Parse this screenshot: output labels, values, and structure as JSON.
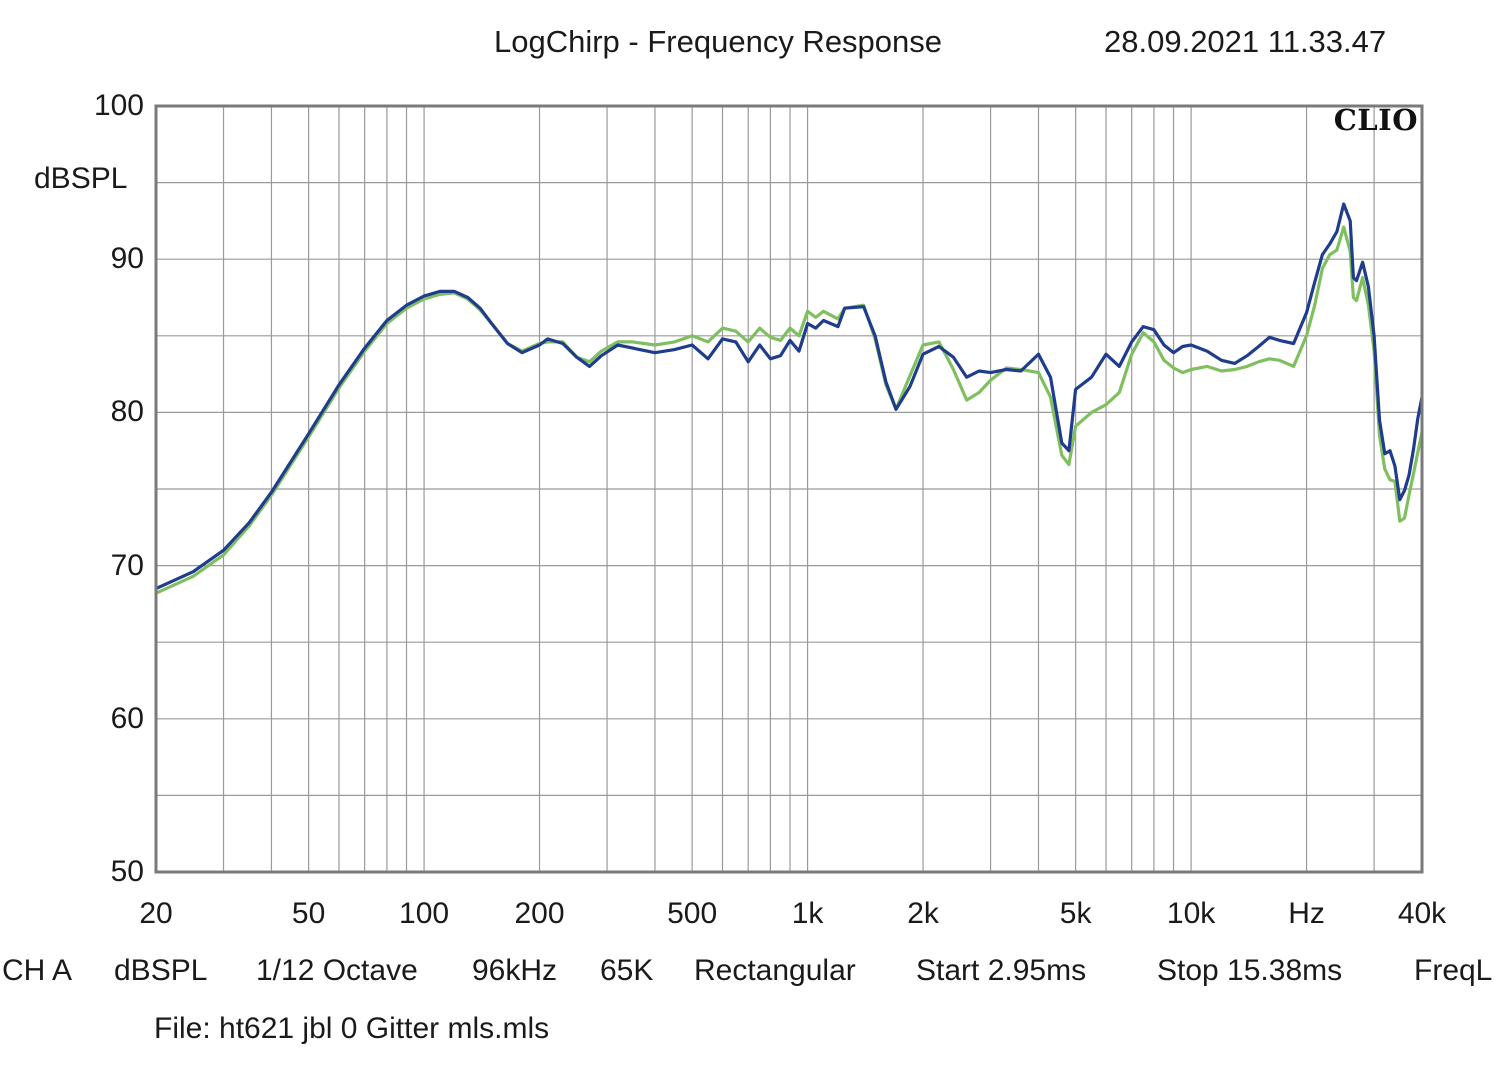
{
  "header": {
    "title": "LogChirp - Frequency Response",
    "timestamp": "28.09.2021 11.33.47"
  },
  "logo_text": "CLIO",
  "footer": {
    "items": [
      "CH A",
      "dBSPL",
      "1/12 Octave",
      "96kHz",
      "65K",
      "Rectangular",
      "Start 2.95ms",
      "Stop 15.38ms",
      "FreqL"
    ],
    "file": "File: ht621 jbl 0 Gitter mls.mls"
  },
  "chart_data": {
    "type": "line",
    "title": "LogChirp - Frequency Response",
    "xlabel": "Hz",
    "ylabel": "dBSPL",
    "xscale": "log",
    "xlim": [
      20,
      40000
    ],
    "ylim": [
      50,
      100
    ],
    "grid": true,
    "x_ticks": [
      {
        "value": 20,
        "label": "20"
      },
      {
        "value": 50,
        "label": "50"
      },
      {
        "value": 100,
        "label": "100"
      },
      {
        "value": 200,
        "label": "200"
      },
      {
        "value": 500,
        "label": "500"
      },
      {
        "value": 1000,
        "label": "1k"
      },
      {
        "value": 2000,
        "label": "2k"
      },
      {
        "value": 5000,
        "label": "5k"
      },
      {
        "value": 10000,
        "label": "10k"
      },
      {
        "value": 20000,
        "label": "Hz"
      },
      {
        "value": 40000,
        "label": "40k"
      }
    ],
    "y_ticks": [
      {
        "value": 100,
        "label": "100"
      },
      {
        "value": 90,
        "label": "90"
      },
      {
        "value": 80,
        "label": "80"
      },
      {
        "value": 70,
        "label": "70"
      },
      {
        "value": 60,
        "label": "60"
      },
      {
        "value": 50,
        "label": "50"
      }
    ],
    "series": [
      {
        "color": "#1f3d8c",
        "points": [
          [
            20,
            68.5
          ],
          [
            25,
            69.6
          ],
          [
            30,
            71.0
          ],
          [
            35,
            72.8
          ],
          [
            40,
            74.8
          ],
          [
            50,
            78.6
          ],
          [
            60,
            81.8
          ],
          [
            70,
            84.2
          ],
          [
            80,
            86.0
          ],
          [
            90,
            87.0
          ],
          [
            100,
            87.6
          ],
          [
            110,
            87.9
          ],
          [
            120,
            87.9
          ],
          [
            130,
            87.5
          ],
          [
            140,
            86.8
          ],
          [
            150,
            85.8
          ],
          [
            165,
            84.5
          ],
          [
            180,
            83.9
          ],
          [
            200,
            84.4
          ],
          [
            210,
            84.8
          ],
          [
            230,
            84.5
          ],
          [
            250,
            83.6
          ],
          [
            270,
            83.0
          ],
          [
            290,
            83.7
          ],
          [
            320,
            84.4
          ],
          [
            350,
            84.2
          ],
          [
            400,
            83.9
          ],
          [
            450,
            84.1
          ],
          [
            500,
            84.4
          ],
          [
            550,
            83.5
          ],
          [
            600,
            84.8
          ],
          [
            650,
            84.6
          ],
          [
            700,
            83.3
          ],
          [
            750,
            84.4
          ],
          [
            800,
            83.5
          ],
          [
            850,
            83.7
          ],
          [
            900,
            84.7
          ],
          [
            950,
            84.0
          ],
          [
            1000,
            85.8
          ],
          [
            1050,
            85.5
          ],
          [
            1100,
            86.0
          ],
          [
            1200,
            85.6
          ],
          [
            1250,
            86.8
          ],
          [
            1400,
            86.9
          ],
          [
            1500,
            85.0
          ],
          [
            1600,
            82.0
          ],
          [
            1700,
            80.2
          ],
          [
            1850,
            81.7
          ],
          [
            2000,
            83.8
          ],
          [
            2200,
            84.3
          ],
          [
            2400,
            83.6
          ],
          [
            2600,
            82.3
          ],
          [
            2800,
            82.7
          ],
          [
            3000,
            82.6
          ],
          [
            3300,
            82.8
          ],
          [
            3600,
            82.7
          ],
          [
            4000,
            83.8
          ],
          [
            4300,
            82.3
          ],
          [
            4600,
            78.0
          ],
          [
            4800,
            77.5
          ],
          [
            5000,
            81.5
          ],
          [
            5500,
            82.3
          ],
          [
            6000,
            83.8
          ],
          [
            6500,
            83.0
          ],
          [
            7000,
            84.6
          ],
          [
            7500,
            85.6
          ],
          [
            8000,
            85.4
          ],
          [
            8500,
            84.4
          ],
          [
            9000,
            83.9
          ],
          [
            9500,
            84.3
          ],
          [
            10000,
            84.4
          ],
          [
            11000,
            84.0
          ],
          [
            12000,
            83.4
          ],
          [
            13000,
            83.2
          ],
          [
            14000,
            83.7
          ],
          [
            15000,
            84.3
          ],
          [
            16000,
            84.9
          ],
          [
            17000,
            84.7
          ],
          [
            18500,
            84.5
          ],
          [
            20000,
            86.5
          ],
          [
            21000,
            88.5
          ],
          [
            22000,
            90.3
          ],
          [
            23000,
            91.0
          ],
          [
            24000,
            91.8
          ],
          [
            25000,
            93.6
          ],
          [
            26000,
            92.5
          ],
          [
            26500,
            88.8
          ],
          [
            27000,
            88.6
          ],
          [
            28000,
            89.8
          ],
          [
            29000,
            88.2
          ],
          [
            30000,
            85.0
          ],
          [
            31000,
            79.5
          ],
          [
            32000,
            77.3
          ],
          [
            33000,
            77.5
          ],
          [
            34000,
            76.5
          ],
          [
            35000,
            74.3
          ],
          [
            36000,
            74.9
          ],
          [
            37000,
            75.9
          ],
          [
            38000,
            77.6
          ],
          [
            39000,
            79.6
          ],
          [
            40000,
            81.0
          ]
        ]
      },
      {
        "color": "#7fbf5f",
        "points": [
          [
            20,
            68.2
          ],
          [
            25,
            69.3
          ],
          [
            30,
            70.7
          ],
          [
            35,
            72.6
          ],
          [
            40,
            74.6
          ],
          [
            50,
            78.4
          ],
          [
            60,
            81.6
          ],
          [
            70,
            84.0
          ],
          [
            80,
            85.8
          ],
          [
            90,
            86.8
          ],
          [
            100,
            87.4
          ],
          [
            110,
            87.7
          ],
          [
            120,
            87.8
          ],
          [
            130,
            87.4
          ],
          [
            140,
            86.7
          ],
          [
            150,
            85.8
          ],
          [
            165,
            84.5
          ],
          [
            180,
            84.0
          ],
          [
            200,
            84.5
          ],
          [
            210,
            84.6
          ],
          [
            230,
            84.6
          ],
          [
            250,
            83.6
          ],
          [
            270,
            83.3
          ],
          [
            290,
            84.0
          ],
          [
            320,
            84.6
          ],
          [
            350,
            84.6
          ],
          [
            400,
            84.4
          ],
          [
            450,
            84.6
          ],
          [
            500,
            85.0
          ],
          [
            550,
            84.6
          ],
          [
            600,
            85.5
          ],
          [
            650,
            85.3
          ],
          [
            700,
            84.6
          ],
          [
            750,
            85.5
          ],
          [
            800,
            84.9
          ],
          [
            850,
            84.7
          ],
          [
            900,
            85.5
          ],
          [
            950,
            85.0
          ],
          [
            1000,
            86.6
          ],
          [
            1050,
            86.2
          ],
          [
            1100,
            86.6
          ],
          [
            1200,
            86.1
          ],
          [
            1250,
            86.8
          ],
          [
            1400,
            87.0
          ],
          [
            1500,
            84.8
          ],
          [
            1600,
            81.8
          ],
          [
            1700,
            80.2
          ],
          [
            1850,
            82.4
          ],
          [
            2000,
            84.4
          ],
          [
            2200,
            84.6
          ],
          [
            2400,
            82.8
          ],
          [
            2600,
            80.8
          ],
          [
            2800,
            81.3
          ],
          [
            3000,
            82.1
          ],
          [
            3300,
            82.9
          ],
          [
            3600,
            82.8
          ],
          [
            4000,
            82.6
          ],
          [
            4300,
            81.0
          ],
          [
            4600,
            77.2
          ],
          [
            4800,
            76.6
          ],
          [
            5000,
            79.1
          ],
          [
            5500,
            80.0
          ],
          [
            6000,
            80.5
          ],
          [
            6500,
            81.3
          ],
          [
            7000,
            83.8
          ],
          [
            7500,
            85.2
          ],
          [
            8000,
            84.6
          ],
          [
            8500,
            83.4
          ],
          [
            9000,
            82.9
          ],
          [
            9500,
            82.6
          ],
          [
            10000,
            82.8
          ],
          [
            11000,
            83.0
          ],
          [
            12000,
            82.7
          ],
          [
            13000,
            82.8
          ],
          [
            14000,
            83.0
          ],
          [
            15000,
            83.3
          ],
          [
            16000,
            83.5
          ],
          [
            17000,
            83.4
          ],
          [
            18500,
            83.0
          ],
          [
            20000,
            85.0
          ],
          [
            21000,
            87.0
          ],
          [
            22000,
            89.4
          ],
          [
            23000,
            90.3
          ],
          [
            24000,
            90.6
          ],
          [
            25000,
            92.1
          ],
          [
            26000,
            90.5
          ],
          [
            26500,
            87.5
          ],
          [
            27000,
            87.3
          ],
          [
            28000,
            88.8
          ],
          [
            29000,
            87.0
          ],
          [
            30000,
            84.0
          ],
          [
            31000,
            78.5
          ],
          [
            32000,
            76.3
          ],
          [
            33000,
            75.6
          ],
          [
            34000,
            75.5
          ],
          [
            35000,
            72.9
          ],
          [
            36000,
            73.1
          ],
          [
            37000,
            74.6
          ],
          [
            38000,
            76.0
          ],
          [
            39000,
            77.4
          ],
          [
            40000,
            78.7
          ]
        ]
      }
    ]
  }
}
